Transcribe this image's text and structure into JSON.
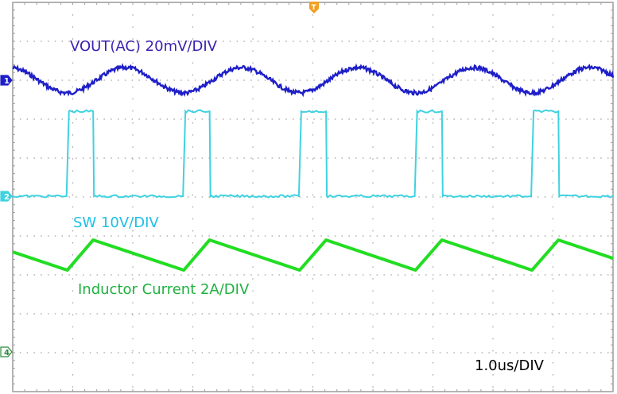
{
  "chart_data": {
    "type": "line",
    "title": "",
    "xlim_us": [
      0,
      10
    ],
    "grid": true,
    "grid_divisions": {
      "x": 10,
      "y": 10
    },
    "timebase_label": "1.0us/DIV",
    "trigger_marker": {
      "label": "T",
      "color": "#f0a020"
    },
    "series": [
      {
        "name": "VOUT(AC) 20mV/DIV",
        "channel": "1",
        "color": "#1f1fc8",
        "scale_per_div": 20,
        "unit": "mV",
        "reference_div": 8,
        "waveform": "sinusoidal ripple",
        "amplitude": 6.5,
        "period_us": 1.935,
        "trough_times_us": [
          0.91,
          2.85,
          4.78,
          6.71,
          8.65
        ]
      },
      {
        "name": "SW 10V/DIV",
        "channel": "2",
        "color": "#3fd2e0",
        "scale_per_div": 10,
        "unit": "V",
        "reference_div": 5,
        "low": 0,
        "high": 21.8,
        "rise_times_us": [
          0.91,
          2.85,
          4.78,
          6.71,
          8.65
        ],
        "fall_times_us": [
          1.34,
          3.28,
          5.22,
          7.15,
          9.09
        ]
      },
      {
        "name": "Inductor Current 2A/DIV",
        "channel": "4",
        "color": "#22dd22",
        "scale_per_div": 2,
        "unit": "A",
        "reference_div": 1,
        "points": [
          [
            0,
            5.14
          ],
          [
            0.91,
            4.2
          ],
          [
            1.34,
            5.75
          ],
          [
            2.85,
            4.2
          ],
          [
            3.28,
            5.75
          ],
          [
            4.78,
            4.2
          ],
          [
            5.22,
            5.75
          ],
          [
            6.71,
            4.2
          ],
          [
            7.15,
            5.75
          ],
          [
            8.65,
            4.2
          ],
          [
            9.09,
            5.75
          ],
          [
            10,
            4.81
          ]
        ]
      }
    ]
  },
  "labels": {
    "vout": "VOUT(AC) 20mV/DIV",
    "sw": "SW 10V/DIV",
    "il": "Inductor Current 2A/DIV",
    "timebase": "1.0us/DIV"
  },
  "markers": {
    "ch1": "1",
    "ch2": "2",
    "ch4": "4",
    "trigger": "T"
  },
  "colors": {
    "vout_label": "#3b1fb0",
    "sw_label": "#1ec0e6",
    "il_label": "#1fb040",
    "grid": "#a0a0a0"
  }
}
